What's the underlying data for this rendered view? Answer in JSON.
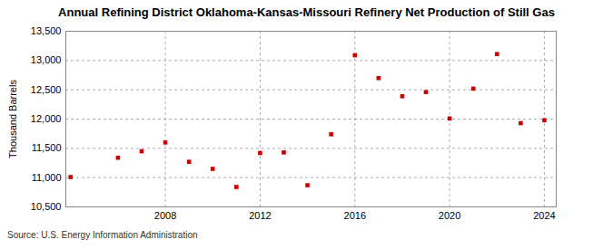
{
  "chart_data": {
    "type": "scatter",
    "title": "Annual Refining District Oklahoma-Kansas-Missouri Refinery Net Production of Still Gas",
    "y_label": "Thousand Barrels",
    "caption": "Source: U.S. Energy Information Administration",
    "x": [
      2004,
      2006,
      2007,
      2008,
      2009,
      2010,
      2011,
      2012,
      2013,
      2014,
      2015,
      2016,
      2017,
      2018,
      2019,
      2020,
      2021,
      2022,
      2023,
      2024
    ],
    "values": [
      11010,
      11340,
      11450,
      11600,
      11270,
      11150,
      10840,
      11420,
      11430,
      10870,
      11740,
      13090,
      12700,
      12390,
      12460,
      12010,
      12520,
      13110,
      11930,
      11980
    ],
    "color": "#cc0000",
    "marker": "square",
    "xlim": [
      2003.8,
      2024.5
    ],
    "xticks": [
      2008,
      2012,
      2016,
      2020,
      2024
    ],
    "ylim": [
      10500,
      13500
    ],
    "yticks": [
      {
        "value": 10500,
        "label": "10,500"
      },
      {
        "value": 11000,
        "label": "11,000"
      },
      {
        "value": 11500,
        "label": "11,500"
      },
      {
        "value": 12000,
        "label": "12,000"
      },
      {
        "value": 12500,
        "label": "12,500"
      },
      {
        "value": 13000,
        "label": "13,000"
      },
      {
        "value": 13500,
        "label": "13,500"
      }
    ],
    "grid": true
  }
}
